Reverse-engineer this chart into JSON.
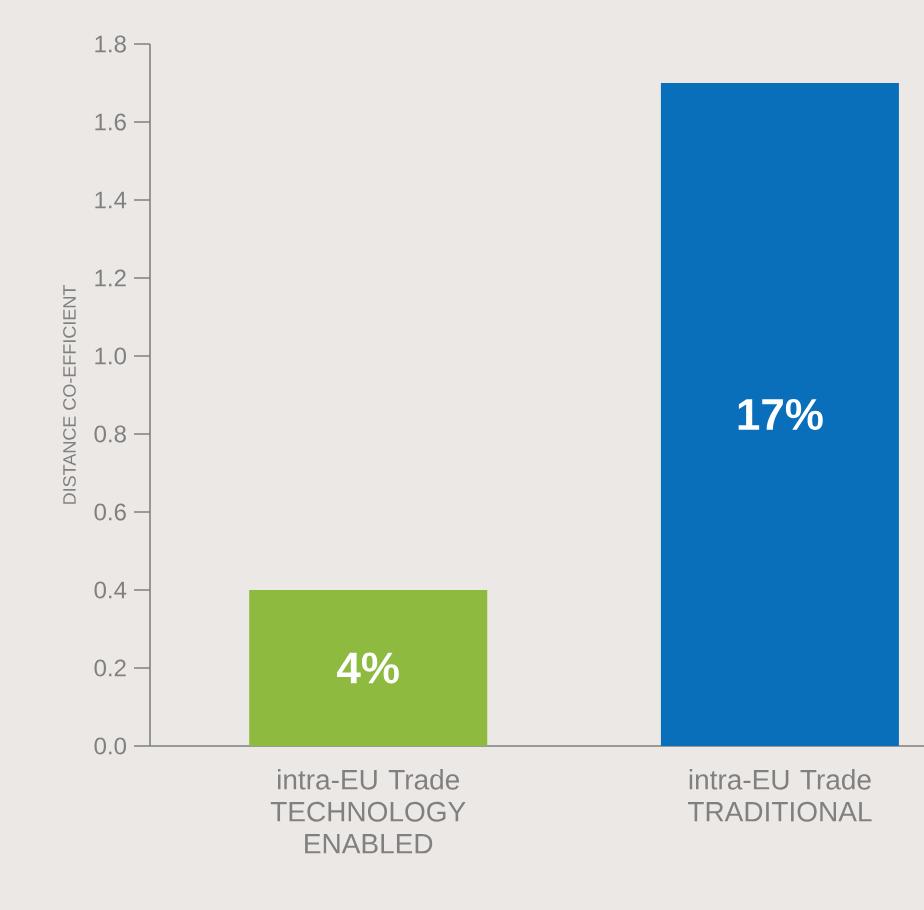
{
  "chart_data": {
    "type": "bar",
    "ylabel": "DISTANCE CO-EFFICIENT",
    "categories": [
      "intra-EU Trade TECHNOLOGY ENABLED",
      "intra-EU Trade TRADITIONAL"
    ],
    "values": [
      0.4,
      1.7
    ],
    "colors": [
      "#8dba3f",
      "#0a6fba"
    ],
    "annotations": [
      "4%",
      "17%"
    ],
    "ylim": [
      0,
      1.8
    ],
    "yticks": [
      {
        "value": 0,
        "label": "0.0"
      },
      {
        "value": 0.2,
        "label": "0.2"
      },
      {
        "value": 0.4,
        "label": "0.4"
      },
      {
        "value": 0.6,
        "label": "0.6"
      },
      {
        "value": 0.8,
        "label": "0.8"
      },
      {
        "value": 1.0,
        "label": "1.0"
      },
      {
        "value": 1.2,
        "label": "1.2"
      },
      {
        "value": 1.4,
        "label": "1.4"
      },
      {
        "value": 1.6,
        "label": "1.6"
      },
      {
        "value": 1.8,
        "label": "1.8"
      }
    ]
  }
}
